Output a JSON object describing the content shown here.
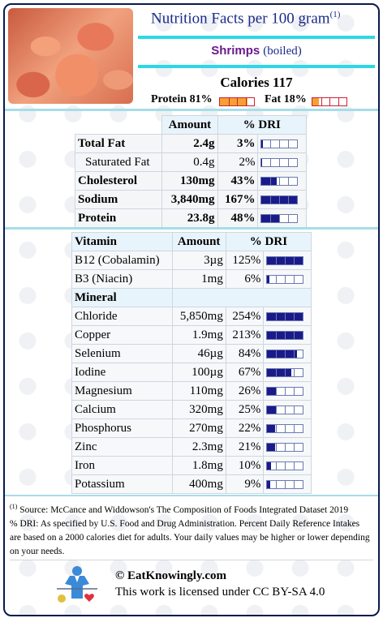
{
  "header": {
    "title": "Nutrition Facts per 100 gram",
    "title_note": "(1)",
    "food_name": "Shrimps",
    "food_prep": "(boiled)",
    "calories_label": "Calories 117",
    "protein_label": "Protein 81%",
    "fat_label": "Fat 18%",
    "protein_fraction": 0.81,
    "fat_fraction": 0.18
  },
  "colors": {
    "title": "#1a2a8a",
    "bar_fill": "#1a1a8a",
    "macro_fill": "#f6a032",
    "accent_cyan": "#2ad9e6"
  },
  "macros": {
    "headers": [
      "Amount",
      "% DRI"
    ],
    "rows": [
      {
        "name": "Total Fat",
        "amount": "2.4g",
        "dri": "3%",
        "pct": 3,
        "bold": true
      },
      {
        "name": "Saturated Fat",
        "amount": "0.4g",
        "dri": "2%",
        "pct": 2,
        "bold": false
      },
      {
        "name": "Cholesterol",
        "amount": "130mg",
        "dri": "43%",
        "pct": 43,
        "bold": true
      },
      {
        "name": "Sodium",
        "amount": "3,840mg",
        "dri": "167%",
        "pct": 167,
        "bold": true
      },
      {
        "name": "Protein",
        "amount": "23.8g",
        "dri": "48%",
        "pct": 48,
        "bold": true
      }
    ]
  },
  "micros": {
    "headers": [
      "Vitamin",
      "Amount",
      "% DRI"
    ],
    "mineral_label": "Mineral",
    "vitamins": [
      {
        "name": "B12 (Cobalamin)",
        "amount": "3µg",
        "dri": "125%",
        "pct": 125
      },
      {
        "name": "B3 (Niacin)",
        "amount": "1mg",
        "dri": "6%",
        "pct": 6
      }
    ],
    "minerals": [
      {
        "name": "Chloride",
        "amount": "5,850mg",
        "dri": "254%",
        "pct": 254
      },
      {
        "name": "Copper",
        "amount": "1.9mg",
        "dri": "213%",
        "pct": 213
      },
      {
        "name": "Selenium",
        "amount": "46µg",
        "dri": "84%",
        "pct": 84
      },
      {
        "name": "Iodine",
        "amount": "100µg",
        "dri": "67%",
        "pct": 67
      },
      {
        "name": "Magnesium",
        "amount": "110mg",
        "dri": "26%",
        "pct": 26
      },
      {
        "name": "Calcium",
        "amount": "320mg",
        "dri": "25%",
        "pct": 25
      },
      {
        "name": "Phosphorus",
        "amount": "270mg",
        "dri": "22%",
        "pct": 22
      },
      {
        "name": "Zinc",
        "amount": "2.3mg",
        "dri": "21%",
        "pct": 21
      },
      {
        "name": "Iron",
        "amount": "1.8mg",
        "dri": "10%",
        "pct": 10
      },
      {
        "name": "Potassium",
        "amount": "400mg",
        "dri": "9%",
        "pct": 9
      }
    ]
  },
  "footnote": {
    "mark": "(1)",
    "source": " Source: McCance and Widdowson's The Composition of Foods Integrated Dataset 2019",
    "dri_text": "% DRI: As specified by U.S. Food and Drug Administration. Percent Daily Reference Intakes are based on a 2000 calories diet for adults. Your daily values may be higher or lower depending on your needs."
  },
  "footer": {
    "brand": "© EatKnowingly.com",
    "license": "This work is licensed under CC BY-SA 4.0"
  }
}
